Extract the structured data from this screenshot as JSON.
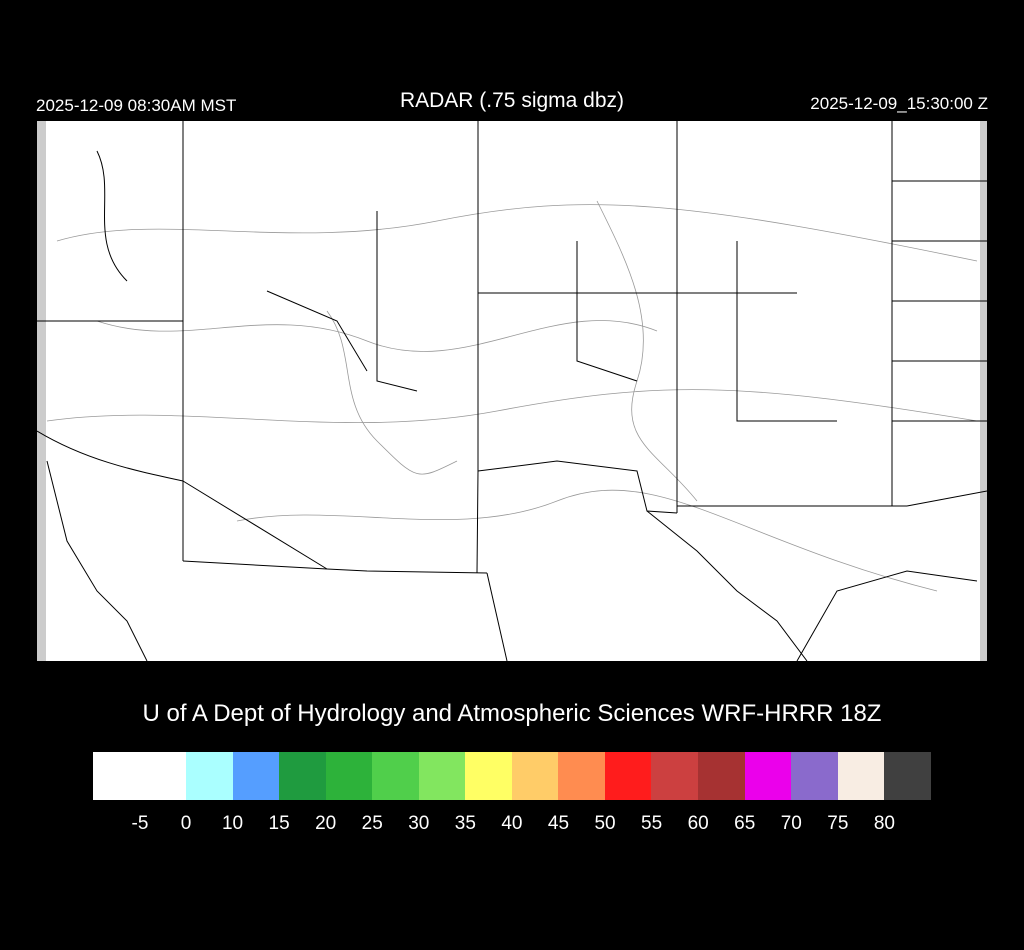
{
  "header": {
    "local_time": "2025-12-09 08:30AM MST",
    "title": "RADAR (.75 sigma dbz)",
    "utc_time": "2025-12-09_15:30:00 Z"
  },
  "credit": "U of A Dept of Hydrology and Atmospheric Sciences WRF-HRRR 18Z",
  "colorbar": {
    "colors": [
      "#ffffff",
      "#aaffff",
      "#559eff",
      "#1f9b3f",
      "#2db23a",
      "#50cf4b",
      "#82e65f",
      "#ffff64",
      "#ffcc68",
      "#ff8c50",
      "#ff1c1c",
      "#cc4040",
      "#a63232",
      "#eb00eb",
      "#8a6acc",
      "#f8ede3",
      "#404040"
    ],
    "labels": [
      "-5",
      "0",
      "10",
      "15",
      "20",
      "25",
      "30",
      "35",
      "40",
      "45",
      "50",
      "55",
      "60",
      "65",
      "70",
      "75",
      "80"
    ]
  }
}
